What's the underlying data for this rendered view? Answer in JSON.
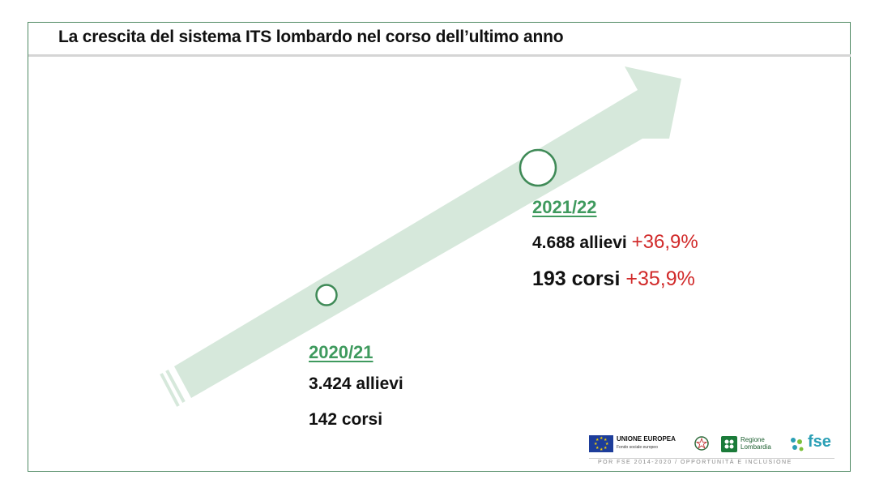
{
  "title": "La crescita del sistema ITS lombardo nel corso dell’ultimo anno",
  "timeline": [
    {
      "year": "2020/21",
      "students": "3.424 allievi",
      "courses": "142 corsi"
    },
    {
      "year": "2021/22",
      "students": "4.688 allievi",
      "students_change": "+36,9%",
      "courses": "193 corsi",
      "courses_change": "+35,9%"
    }
  ],
  "colors": {
    "arrow": "#d6e8db",
    "marker": "#3f8a57",
    "year": "#3f9a5e",
    "change": "#d12a2a"
  },
  "logos": {
    "eu_label": "UNIONE EUROPEA",
    "eu_sub": "Fondo sociale europeo",
    "region_line1": "Regione",
    "region_line2": "Lombardia",
    "fse_label": "fse"
  },
  "footer": "POR FSE 2014-2020 / OPPORTUNITÀ E INCLUSIONE"
}
